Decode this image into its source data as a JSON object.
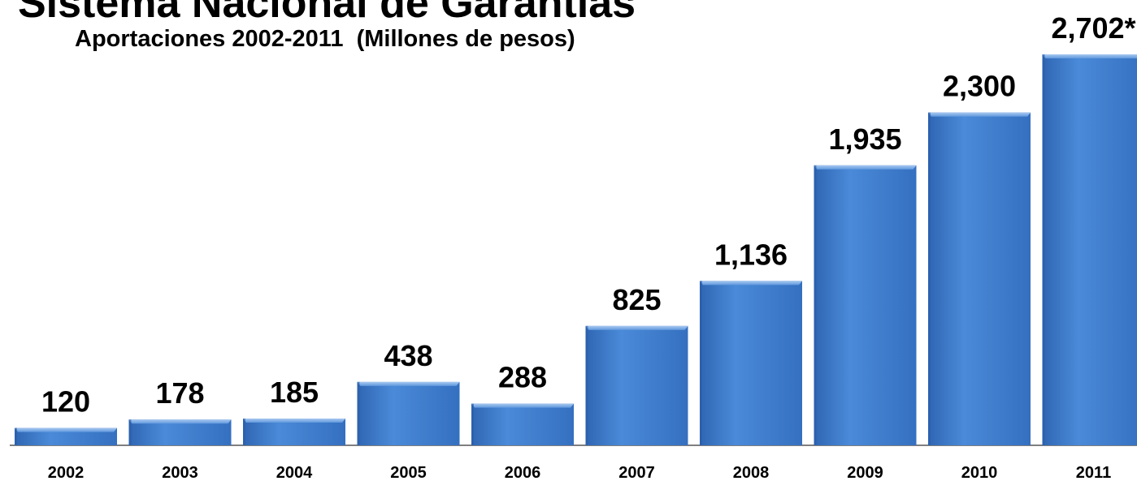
{
  "chart_data": {
    "type": "bar",
    "title": "Sistema Nacional de Garantías",
    "subtitle": "Aportaciones 2002-2011  (Millones de pesos)",
    "categories": [
      "2002",
      "2003",
      "2004",
      "2005",
      "2006",
      "2007",
      "2008",
      "2009",
      "2010",
      "2011"
    ],
    "values": [
      120,
      178,
      185,
      438,
      288,
      825,
      1136,
      1935,
      2300,
      2702
    ],
    "value_labels": [
      "120",
      "178",
      "185",
      "438",
      "288",
      "825",
      "1,136",
      "1,935",
      "2,300",
      "2,702*"
    ],
    "xlabel": "",
    "ylabel": "",
    "ylim": [
      0,
      2702
    ],
    "grid": false,
    "legend": "none",
    "bar_color": "#3f7fd0"
  }
}
